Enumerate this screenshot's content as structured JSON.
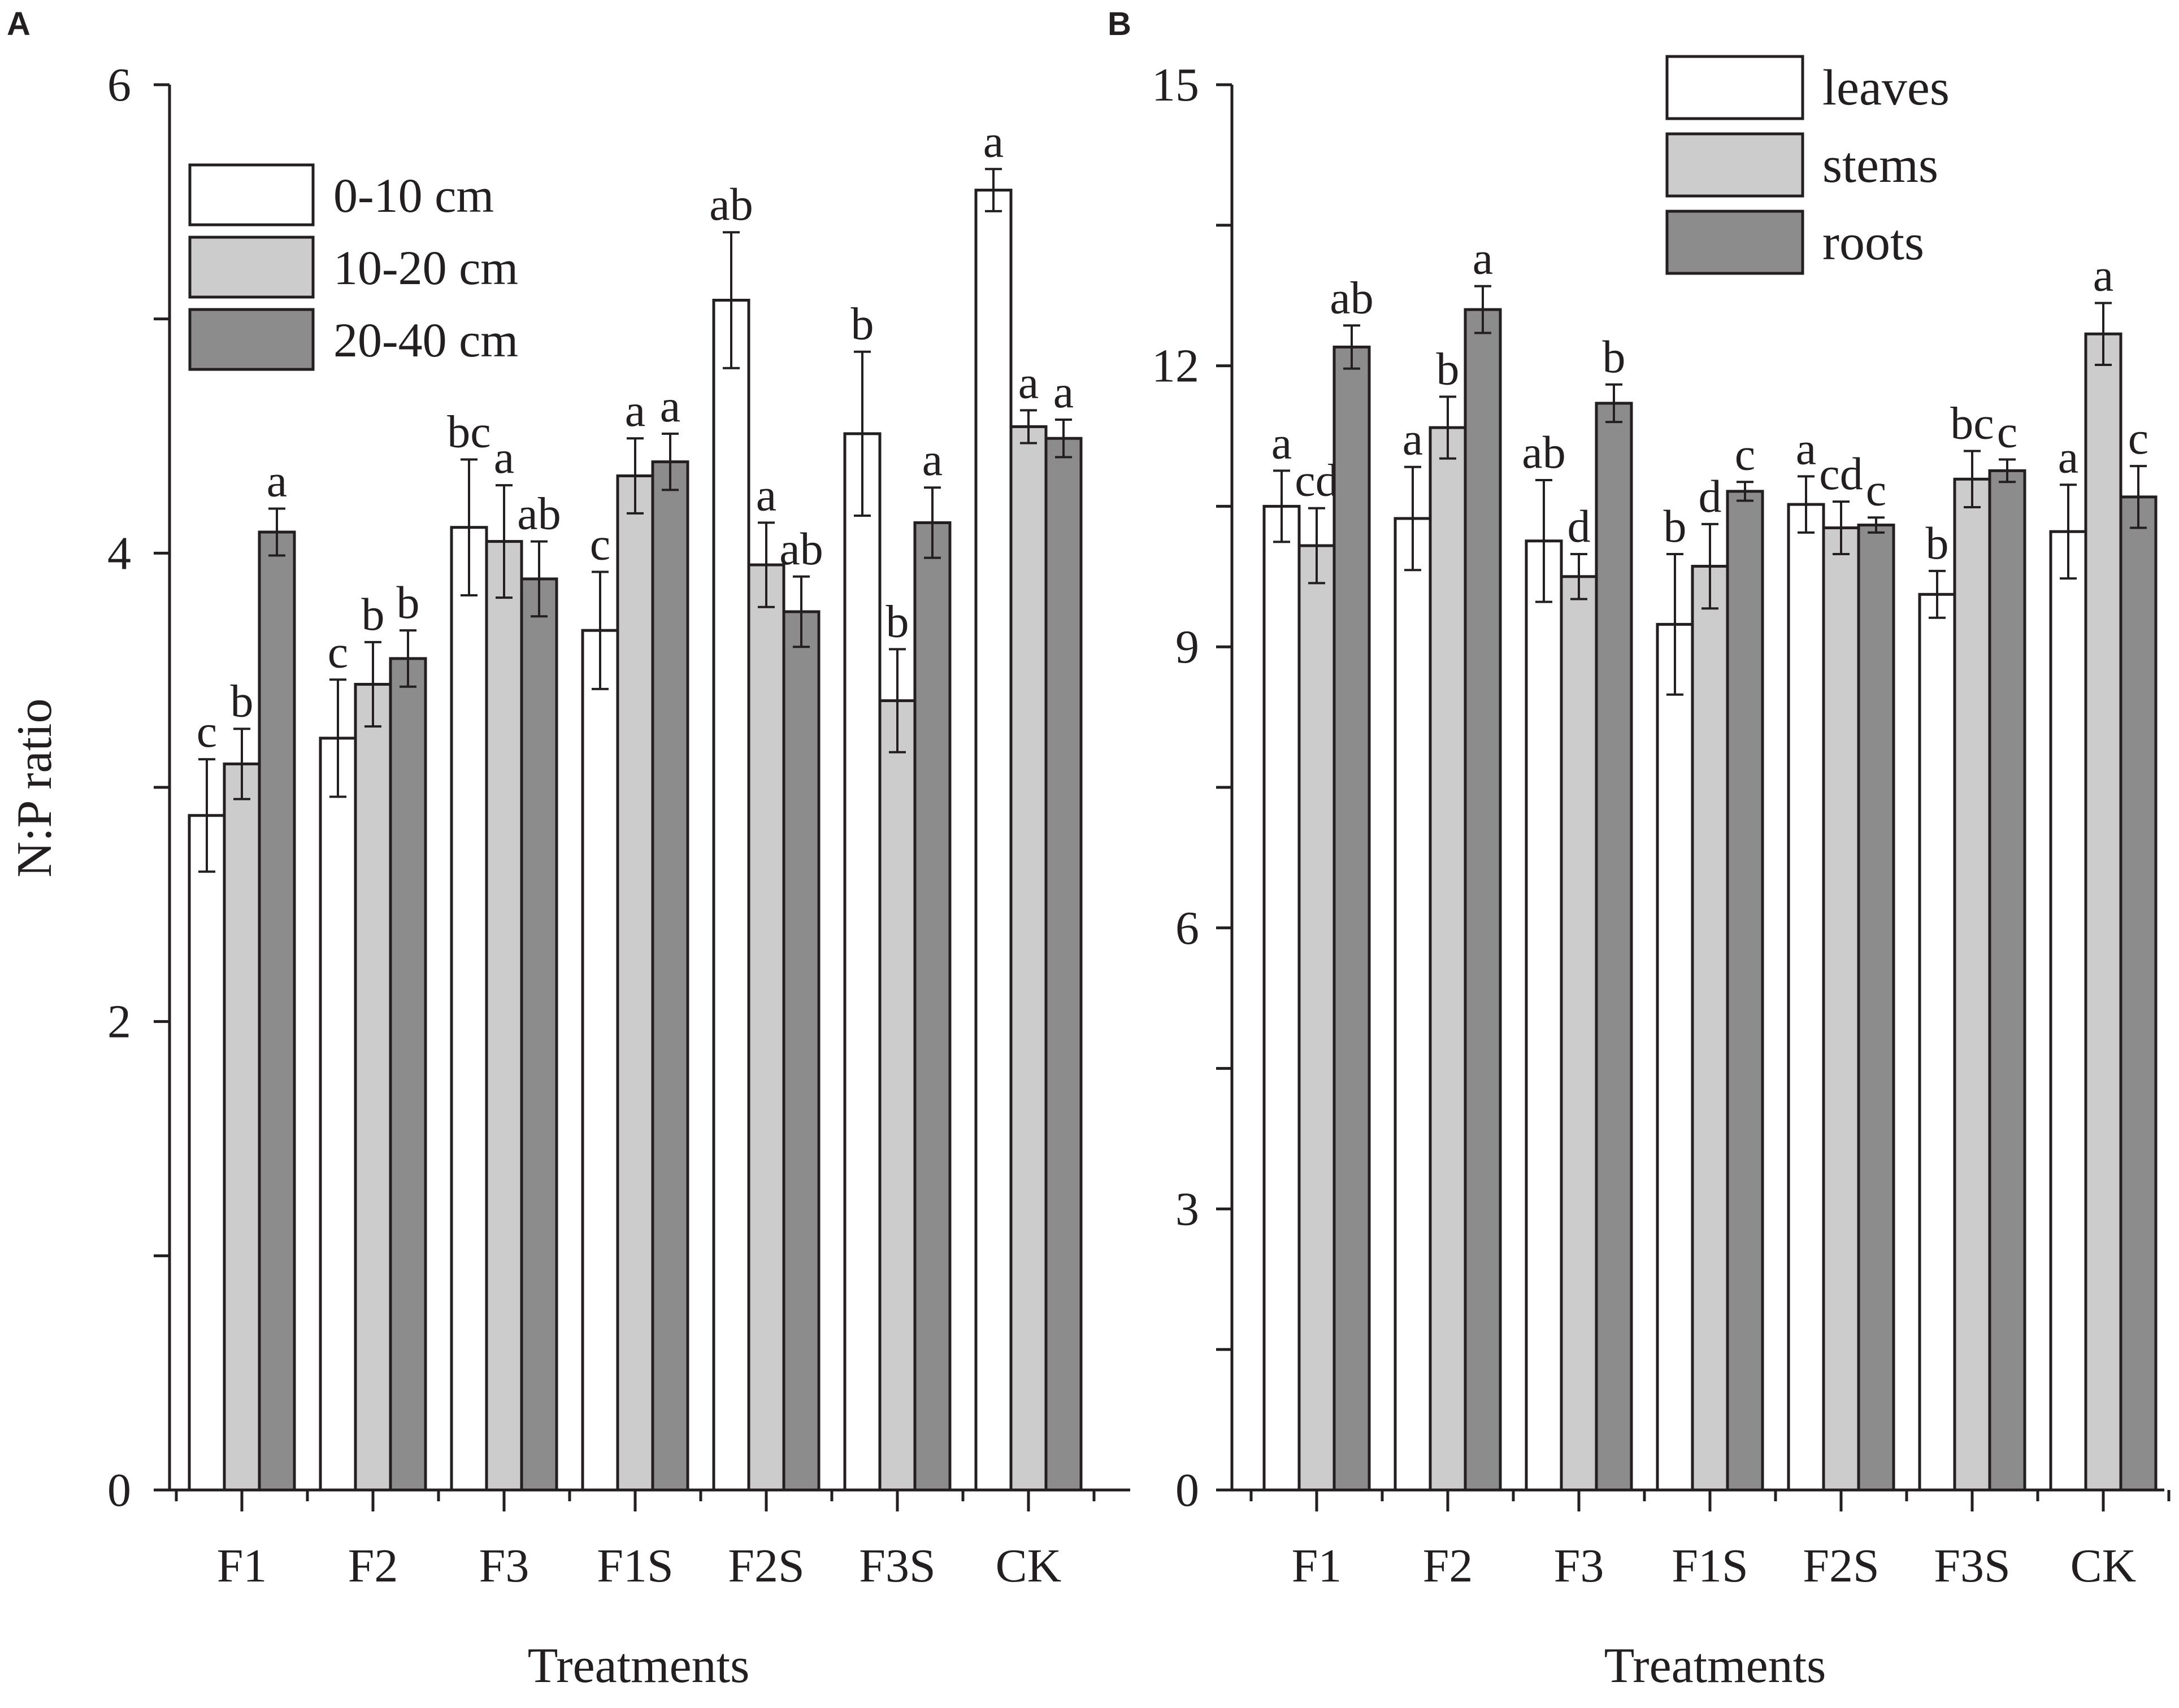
{
  "panels": [
    {
      "letter": "A"
    },
    {
      "letter": "B"
    }
  ],
  "colors": {
    "white": "#ffffff",
    "light_grey": "#cccccc",
    "dark_grey": "#8c8c8c",
    "ink": "#231f20"
  },
  "chart_data": [
    {
      "type": "bar",
      "panel": "A",
      "ylabel": "N:P ratio",
      "xlabel": "Treatments",
      "ylim": [
        0,
        6
      ],
      "yticks": [
        0,
        2,
        4,
        6
      ],
      "minor_tick_step": 1,
      "categories": [
        "F1",
        "F2",
        "F3",
        "F1S",
        "F2S",
        "F3S",
        "CK"
      ],
      "legend_position": "top-left",
      "series": [
        {
          "name": "0-10 cm",
          "color": "#ffffff",
          "values": [
            2.88,
            3.21,
            4.11,
            3.67,
            5.08,
            4.51,
            5.55
          ],
          "errors": [
            0.24,
            0.25,
            0.29,
            0.25,
            0.29,
            0.35,
            0.09
          ],
          "letters": [
            "c",
            "c",
            "bc",
            "c",
            "ab",
            "b",
            "a"
          ]
        },
        {
          "name": "10-20 cm",
          "color": "#cccccc",
          "values": [
            3.1,
            3.44,
            4.05,
            4.33,
            3.95,
            3.37,
            4.54
          ],
          "errors": [
            0.15,
            0.18,
            0.24,
            0.16,
            0.18,
            0.22,
            0.07
          ],
          "letters": [
            "b",
            "b",
            "a",
            "a",
            "a",
            "b",
            "a"
          ]
        },
        {
          "name": "20-40 cm",
          "color": "#8c8c8c",
          "values": [
            4.09,
            3.55,
            3.89,
            4.39,
            3.75,
            4.13,
            4.49
          ],
          "errors": [
            0.1,
            0.12,
            0.16,
            0.12,
            0.15,
            0.15,
            0.08
          ],
          "letters": [
            "a",
            "b",
            "ab",
            "a",
            "ab",
            "a",
            "a"
          ]
        }
      ]
    },
    {
      "type": "bar",
      "panel": "B",
      "ylabel": "",
      "xlabel": "Treatments",
      "ylim": [
        0,
        15
      ],
      "yticks": [
        0,
        3,
        6,
        9,
        12,
        15
      ],
      "minor_tick_step": 1.5,
      "categories": [
        "F1",
        "F2",
        "F3",
        "F1S",
        "F2S",
        "F3S",
        "CK"
      ],
      "legend_position": "top-right",
      "series": [
        {
          "name": "leaves",
          "color": "#ffffff",
          "values": [
            10.5,
            10.37,
            10.13,
            9.24,
            10.52,
            9.56,
            10.23
          ],
          "errors": [
            0.38,
            0.55,
            0.65,
            0.75,
            0.3,
            0.25,
            0.5
          ],
          "letters": [
            "a",
            "a",
            "ab",
            "b",
            "a",
            "b",
            "a"
          ]
        },
        {
          "name": "stems",
          "color": "#cccccc",
          "values": [
            10.08,
            11.34,
            9.75,
            9.86,
            10.27,
            10.79,
            12.34
          ],
          "errors": [
            0.4,
            0.33,
            0.24,
            0.45,
            0.28,
            0.3,
            0.33
          ],
          "letters": [
            "cd",
            "b",
            "d",
            "d",
            "cd",
            "bc",
            "a"
          ]
        },
        {
          "name": "roots",
          "color": "#8c8c8c",
          "values": [
            12.2,
            12.6,
            11.6,
            10.66,
            10.3,
            10.88,
            10.6
          ],
          "errors": [
            0.23,
            0.25,
            0.2,
            0.1,
            0.08,
            0.12,
            0.33
          ],
          "letters": [
            "ab",
            "a",
            "b",
            "c",
            "c",
            "c",
            "c"
          ]
        }
      ]
    }
  ]
}
